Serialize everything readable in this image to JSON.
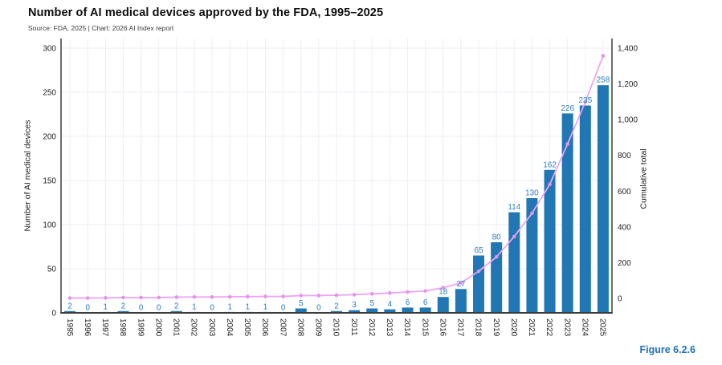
{
  "header": {
    "title": "Number of AI medical devices approved by the FDA, 1995–2025",
    "source": "Source: FDA, 2025 | Chart: 2026 AI Index report"
  },
  "figure_label": "Figure 6.2.6",
  "colors": {
    "bar": "#2077b4",
    "bar_label": "#2f80c3",
    "line": "#eba6f2",
    "marker": "#e493ec",
    "axis": "#3b3b3b",
    "grid": "#eeeef4",
    "tick_text": "#222222",
    "axis_title": "#222222",
    "figure_label": "#1c6fb8"
  },
  "chart_data": {
    "type": "bar",
    "title": "Number of AI medical devices approved by the FDA, 1995–2025",
    "categories": [
      "1995",
      "1996",
      "1997",
      "1998",
      "1999",
      "2000",
      "2001",
      "2002",
      "2003",
      "2004",
      "2005",
      "2006",
      "2007",
      "2008",
      "2009",
      "2010",
      "2011",
      "2012",
      "2013",
      "2014",
      "2015",
      "2016",
      "2017",
      "2018",
      "2019",
      "2020",
      "2021",
      "2022",
      "2023",
      "2024",
      "2025"
    ],
    "series": [
      {
        "name": "Number of AI medical devices",
        "type": "bar",
        "axis": "left",
        "values": [
          2,
          0,
          1,
          2,
          0,
          0,
          2,
          1,
          0,
          1,
          1,
          1,
          0,
          5,
          0,
          2,
          3,
          5,
          4,
          6,
          6,
          18,
          27,
          65,
          80,
          114,
          130,
          162,
          226,
          235,
          258
        ]
      },
      {
        "name": "Cumulative total",
        "type": "line",
        "axis": "right",
        "values": [
          2,
          2,
          3,
          5,
          5,
          5,
          7,
          8,
          8,
          9,
          10,
          11,
          11,
          16,
          16,
          18,
          21,
          26,
          30,
          36,
          42,
          60,
          87,
          152,
          232,
          346,
          476,
          638,
          864,
          1099,
          1357
        ]
      }
    ],
    "left_axis": {
      "label": "Number of AI medical devices",
      "ticks": [
        0,
        50,
        100,
        150,
        200,
        250,
        300
      ],
      "range": [
        0,
        300
      ]
    },
    "right_axis": {
      "label": "Cumulative total",
      "ticks": [
        0,
        200,
        400,
        600,
        800,
        1000,
        1200,
        1400
      ],
      "tick_labels": [
        "0",
        "200",
        "400",
        "600",
        "800",
        "1,000",
        "1,200",
        "1,400"
      ],
      "range": [
        0,
        1400
      ]
    },
    "grid": true,
    "legend": "none",
    "bar_labels_shown": true
  }
}
